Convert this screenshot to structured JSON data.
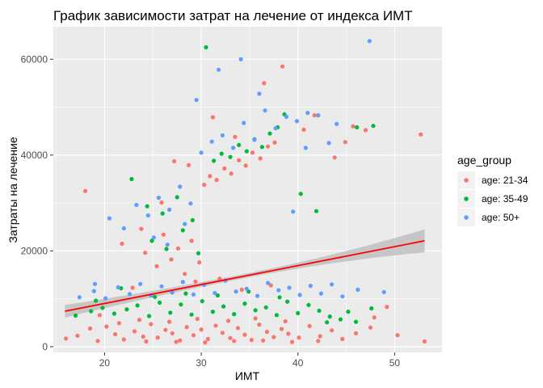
{
  "chart_data": {
    "type": "scatter",
    "title": "График зависимости затрат на лечение от индекса ИМТ",
    "xlabel": "ИМТ",
    "ylabel": "Затраты на лечение",
    "xlim": [
      14.7,
      54.9
    ],
    "ylim": [
      -1200,
      66800
    ],
    "x_ticks": [
      20,
      30,
      40,
      50
    ],
    "x_tick_labels": [
      "20",
      "30",
      "40",
      "50"
    ],
    "y_ticks": [
      0,
      20000,
      40000,
      60000
    ],
    "y_tick_labels": [
      "0",
      "20000",
      "40000",
      "60000"
    ],
    "grid": true,
    "legend": {
      "title": "age_group",
      "position": "right"
    },
    "series": [
      {
        "name": "age: 21-34",
        "color": "#F8766D",
        "points": [
          [
            16.0,
            1700
          ],
          [
            17.2,
            2300
          ],
          [
            18.5,
            3800
          ],
          [
            19.3,
            1200
          ],
          [
            20.2,
            4200
          ],
          [
            21.1,
            2600
          ],
          [
            22.0,
            1500
          ],
          [
            23.1,
            3200
          ],
          [
            24.0,
            2100
          ],
          [
            24.8,
            4700
          ],
          [
            25.5,
            1900
          ],
          [
            26.3,
            3500
          ],
          [
            27.0,
            2800
          ],
          [
            27.8,
            1300
          ],
          [
            28.5,
            4100
          ],
          [
            29.2,
            2400
          ],
          [
            30.0,
            3600
          ],
          [
            30.7,
            1600
          ],
          [
            31.5,
            4400
          ],
          [
            32.2,
            2900
          ],
          [
            33.0,
            1800
          ],
          [
            33.8,
            3900
          ],
          [
            34.5,
            2500
          ],
          [
            35.2,
            1400
          ],
          [
            36.0,
            4600
          ],
          [
            36.8,
            3100
          ],
          [
            37.5,
            2000
          ],
          [
            38.3,
            3700
          ],
          [
            39.0,
            2700
          ],
          [
            40.1,
            1900
          ],
          [
            41.2,
            4300
          ],
          [
            42.3,
            2200
          ],
          [
            43.5,
            3400
          ],
          [
            44.6,
            1600
          ],
          [
            46.0,
            2800
          ],
          [
            47.5,
            4000
          ],
          [
            23.6,
            5600
          ],
          [
            26.7,
            5200
          ],
          [
            29.6,
            5800
          ],
          [
            32.8,
            5400
          ],
          [
            35.6,
            5900
          ],
          [
            38.7,
            5300
          ],
          [
            21.5,
            4900
          ],
          [
            24.3,
            1100
          ],
          [
            27.4,
            1000
          ],
          [
            30.4,
            900
          ],
          [
            33.4,
            1200
          ],
          [
            36.4,
            1300
          ],
          [
            39.4,
            1000
          ],
          [
            42.1,
            1200
          ],
          [
            18.0,
            32500
          ],
          [
            19.5,
            6600
          ],
          [
            21.8,
            21500
          ],
          [
            22.9,
            12300
          ],
          [
            24.2,
            19600
          ],
          [
            25.4,
            16800
          ],
          [
            26.1,
            23400
          ],
          [
            26.9,
            18200
          ],
          [
            27.6,
            20500
          ],
          [
            28.3,
            15200
          ],
          [
            29.0,
            22100
          ],
          [
            29.8,
            17600
          ],
          [
            30.3,
            33800
          ],
          [
            30.9,
            35600
          ],
          [
            31.6,
            34800
          ],
          [
            32.4,
            37200
          ],
          [
            33.1,
            36100
          ],
          [
            33.9,
            38900
          ],
          [
            34.6,
            37800
          ],
          [
            35.3,
            40500
          ],
          [
            36.1,
            39300
          ],
          [
            36.9,
            41800
          ],
          [
            37.6,
            42600
          ],
          [
            38.4,
            58500
          ],
          [
            36.5,
            55000
          ],
          [
            27.2,
            38700
          ],
          [
            28.7,
            37900
          ],
          [
            31.2,
            47900
          ],
          [
            33.5,
            43800
          ],
          [
            43.8,
            39500
          ],
          [
            44.9,
            42700
          ],
          [
            45.7,
            46000
          ],
          [
            47.0,
            45200
          ],
          [
            47.9,
            6100
          ],
          [
            49.2,
            8300
          ],
          [
            50.3,
            2400
          ],
          [
            52.7,
            44300
          ],
          [
            53.1,
            1100
          ],
          [
            40.6,
            45300
          ],
          [
            41.7,
            48300
          ],
          [
            29.4,
            13600
          ],
          [
            31.9,
            14200
          ],
          [
            34.2,
            11900
          ],
          [
            37.2,
            12800
          ],
          [
            23.8,
            24600
          ],
          [
            25.9,
            30100
          ]
        ]
      },
      {
        "name": "age: 35-49",
        "color": "#00BA38",
        "points": [
          [
            17.0,
            6500
          ],
          [
            18.6,
            7400
          ],
          [
            19.8,
            8100
          ],
          [
            21.0,
            6900
          ],
          [
            22.3,
            7800
          ],
          [
            23.4,
            8600
          ],
          [
            24.6,
            6400
          ],
          [
            25.7,
            9200
          ],
          [
            26.8,
            7100
          ],
          [
            27.9,
            8800
          ],
          [
            29.0,
            6700
          ],
          [
            30.1,
            9500
          ],
          [
            31.2,
            7300
          ],
          [
            32.3,
            8400
          ],
          [
            33.4,
            6800
          ],
          [
            34.5,
            9000
          ],
          [
            35.6,
            7600
          ],
          [
            36.7,
            8200
          ],
          [
            37.8,
            6600
          ],
          [
            38.9,
            9400
          ],
          [
            40.0,
            7000
          ],
          [
            41.1,
            8700
          ],
          [
            42.2,
            7500
          ],
          [
            43.3,
            6300
          ],
          [
            44.4,
            5700
          ],
          [
            46.0,
            5200
          ],
          [
            47.6,
            8000
          ],
          [
            25.2,
            10400
          ],
          [
            28.4,
            11100
          ],
          [
            31.7,
            10700
          ],
          [
            34.9,
            11500
          ],
          [
            38.1,
            10300
          ],
          [
            22.8,
            35000
          ],
          [
            24.4,
            29300
          ],
          [
            26.0,
            27800
          ],
          [
            27.5,
            31200
          ],
          [
            29.1,
            26400
          ],
          [
            30.5,
            62500
          ],
          [
            31.3,
            38800
          ],
          [
            32.1,
            40300
          ],
          [
            33.0,
            39600
          ],
          [
            33.9,
            42100
          ],
          [
            34.7,
            40800
          ],
          [
            35.5,
            43300
          ],
          [
            36.3,
            41700
          ],
          [
            37.1,
            44500
          ],
          [
            37.9,
            45800
          ],
          [
            38.6,
            48500
          ],
          [
            40.3,
            31900
          ],
          [
            41.9,
            28300
          ],
          [
            47.8,
            46100
          ],
          [
            46.1,
            45800
          ],
          [
            24.9,
            22100
          ],
          [
            26.4,
            20400
          ],
          [
            28.1,
            24300
          ],
          [
            29.7,
            19500
          ],
          [
            19.1,
            9600
          ],
          [
            21.7,
            12200
          ],
          [
            43.0,
            5100
          ],
          [
            45.2,
            7300
          ]
        ]
      },
      {
        "name": "age: 50+",
        "color": "#619CFF",
        "points": [
          [
            17.4,
            10300
          ],
          [
            18.9,
            11600
          ],
          [
            20.1,
            10100
          ],
          [
            21.4,
            12400
          ],
          [
            22.6,
            11000
          ],
          [
            23.7,
            13100
          ],
          [
            24.8,
            10700
          ],
          [
            25.9,
            12600
          ],
          [
            27.0,
            11300
          ],
          [
            28.1,
            13500
          ],
          [
            29.2,
            10900
          ],
          [
            30.3,
            12900
          ],
          [
            31.4,
            11200
          ],
          [
            32.5,
            13800
          ],
          [
            33.6,
            11500
          ],
          [
            34.7,
            12100
          ],
          [
            35.8,
            10600
          ],
          [
            36.9,
            13300
          ],
          [
            38.0,
            11800
          ],
          [
            39.1,
            12300
          ],
          [
            40.2,
            10800
          ],
          [
            41.3,
            12700
          ],
          [
            42.4,
            11100
          ],
          [
            43.5,
            13000
          ],
          [
            44.6,
            10500
          ],
          [
            46.2,
            11900
          ],
          [
            48.9,
            11400
          ],
          [
            20.5,
            26800
          ],
          [
            22.0,
            24700
          ],
          [
            23.3,
            29600
          ],
          [
            24.5,
            27400
          ],
          [
            25.6,
            31100
          ],
          [
            26.7,
            28600
          ],
          [
            27.8,
            33400
          ],
          [
            28.9,
            29900
          ],
          [
            30.0,
            40500
          ],
          [
            31.1,
            42800
          ],
          [
            32.2,
            44100
          ],
          [
            33.3,
            41500
          ],
          [
            34.4,
            46700
          ],
          [
            35.5,
            43200
          ],
          [
            36.6,
            49300
          ],
          [
            37.7,
            45600
          ],
          [
            38.8,
            48000
          ],
          [
            39.9,
            47100
          ],
          [
            41.0,
            48800
          ],
          [
            42.1,
            48300
          ],
          [
            43.2,
            42500
          ],
          [
            29.5,
            51500
          ],
          [
            31.8,
            57800
          ],
          [
            34.1,
            60000
          ],
          [
            36.0,
            52800
          ],
          [
            47.4,
            63800
          ],
          [
            44.0,
            46500
          ],
          [
            25.1,
            22800
          ],
          [
            26.5,
            21300
          ],
          [
            28.3,
            25600
          ],
          [
            39.5,
            28200
          ],
          [
            40.8,
            41500
          ],
          [
            19.0,
            13100
          ]
        ]
      }
    ],
    "trend_line": {
      "method": "lm",
      "color": "#FF0000",
      "band_color": "#BFBFBF",
      "x_range": [
        15.9,
        53.1
      ],
      "y_at_x_min": 7400,
      "y_at_x_max": 22100,
      "se_at_x_min": 1300,
      "se_at_x_max": 2400,
      "se_at_center": 450
    }
  }
}
